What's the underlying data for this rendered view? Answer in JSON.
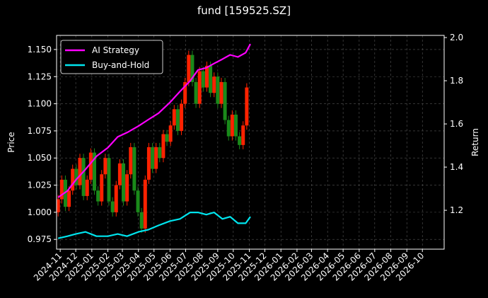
{
  "chart_data": {
    "title": "fund [159525.SZ]",
    "type": "line",
    "grid": true,
    "legend_position": "top-left",
    "y_left": {
      "label": "Price",
      "lim": [
        0.966,
        1.163
      ],
      "ticks": [
        0.975,
        1.0,
        1.025,
        1.05,
        1.075,
        1.1,
        1.125,
        1.15
      ],
      "tick_labels": [
        "0.975",
        "1.000",
        "1.025",
        "1.050",
        "1.075",
        "1.100",
        "1.125",
        "1.150"
      ]
    },
    "y_right": {
      "label": "Return",
      "lim": [
        1.02,
        2.01
      ],
      "ticks": [
        1.2,
        1.4,
        1.6,
        1.8,
        2.0
      ],
      "tick_labels": [
        "1.2",
        "1.4",
        "1.6",
        "1.8",
        "2.0"
      ]
    },
    "x_axis": {
      "lim": [
        "2024-10-25",
        "2026-11-12"
      ],
      "tick_dates": [
        "2024-11-01",
        "2024-12-01",
        "2025-01-01",
        "2025-02-01",
        "2025-03-01",
        "2025-04-01",
        "2025-05-01",
        "2025-06-01",
        "2025-07-01",
        "2025-08-01",
        "2025-09-01",
        "2025-10-01",
        "2025-11-01",
        "2025-12-01",
        "2026-01-01",
        "2026-02-01",
        "2026-03-01",
        "2026-04-01",
        "2026-05-01",
        "2026-06-01",
        "2026-07-01",
        "2026-08-01",
        "2026-09-01",
        "2026-10-01"
      ],
      "tick_labels": [
        "2024-11",
        "2024-12",
        "2025-01",
        "2025-02",
        "2025-03",
        "2025-04",
        "2025-05",
        "2025-06",
        "2025-07",
        "2025-08",
        "2025-09",
        "2025-10",
        "2025-11",
        "2025-12",
        "2026-01",
        "2026-02",
        "2026-03",
        "2026-04",
        "2026-05",
        "2026-06",
        "2026-07",
        "2026-08",
        "2026-09",
        "2026-10"
      ]
    },
    "candles": {
      "up_color": "#ff2200",
      "down_color": "#1a8a1a",
      "points": [
        [
          "2024-10-28",
          1.0,
          1.012
        ],
        [
          "2024-11-04",
          1.012,
          1.03
        ],
        [
          "2024-11-11",
          1.03,
          1.005
        ],
        [
          "2024-11-18",
          1.005,
          1.02
        ],
        [
          "2024-11-25",
          1.02,
          1.04
        ],
        [
          "2024-12-02",
          1.04,
          1.025
        ],
        [
          "2024-12-09",
          1.025,
          1.05
        ],
        [
          "2024-12-16",
          1.05,
          1.015
        ],
        [
          "2024-12-23",
          1.015,
          1.03
        ],
        [
          "2024-12-30",
          1.03,
          1.055
        ],
        [
          "2025-01-06",
          1.055,
          1.02
        ],
        [
          "2025-01-13",
          1.02,
          1.01
        ],
        [
          "2025-01-20",
          1.01,
          1.035
        ],
        [
          "2025-01-27",
          1.035,
          1.05
        ],
        [
          "2025-02-03",
          1.05,
          1.01
        ],
        [
          "2025-02-10",
          1.01,
          1.0
        ],
        [
          "2025-02-17",
          1.0,
          1.025
        ],
        [
          "2025-02-24",
          1.025,
          1.045
        ],
        [
          "2025-03-03",
          1.045,
          1.01
        ],
        [
          "2025-03-10",
          1.01,
          1.035
        ],
        [
          "2025-03-17",
          1.035,
          1.06
        ],
        [
          "2025-03-24",
          1.06,
          1.02
        ],
        [
          "2025-03-31",
          1.02,
          1.0
        ],
        [
          "2025-04-07",
          1.0,
          0.985
        ],
        [
          "2025-04-14",
          0.985,
          1.03
        ],
        [
          "2025-04-21",
          1.03,
          1.06
        ],
        [
          "2025-04-28",
          1.06,
          1.04
        ],
        [
          "2025-05-05",
          1.04,
          1.06
        ],
        [
          "2025-05-12",
          1.06,
          1.05
        ],
        [
          "2025-05-19",
          1.05,
          1.072
        ],
        [
          "2025-05-26",
          1.072,
          1.065
        ],
        [
          "2025-06-02",
          1.065,
          1.08
        ],
        [
          "2025-06-09",
          1.08,
          1.095
        ],
        [
          "2025-06-16",
          1.095,
          1.075
        ],
        [
          "2025-06-23",
          1.075,
          1.1
        ],
        [
          "2025-06-30",
          1.1,
          1.12
        ],
        [
          "2025-07-07",
          1.12,
          1.145
        ],
        [
          "2025-07-14",
          1.145,
          1.12
        ],
        [
          "2025-07-21",
          1.12,
          1.1
        ],
        [
          "2025-07-28",
          1.1,
          1.13
        ],
        [
          "2025-08-04",
          1.13,
          1.115
        ],
        [
          "2025-08-11",
          1.115,
          1.135
        ],
        [
          "2025-08-18",
          1.135,
          1.11
        ],
        [
          "2025-08-25",
          1.11,
          1.125
        ],
        [
          "2025-09-01",
          1.125,
          1.1
        ],
        [
          "2025-09-08",
          1.1,
          1.12
        ],
        [
          "2025-09-15",
          1.12,
          1.085
        ],
        [
          "2025-09-22",
          1.085,
          1.07
        ],
        [
          "2025-09-29",
          1.07,
          1.09
        ],
        [
          "2025-10-06",
          1.09,
          1.07
        ],
        [
          "2025-10-13",
          1.07,
          1.062
        ],
        [
          "2025-10-20",
          1.062,
          1.08
        ],
        [
          "2025-10-27",
          1.08,
          1.115
        ]
      ]
    },
    "series": [
      {
        "name": "AI Strategy",
        "axis": "right",
        "color": "#ff00ff",
        "x": [
          "2024-10-28",
          "2024-11-15",
          "2024-12-01",
          "2024-12-20",
          "2025-01-10",
          "2025-02-01",
          "2025-02-20",
          "2025-03-10",
          "2025-04-01",
          "2025-04-20",
          "2025-05-10",
          "2025-06-01",
          "2025-06-20",
          "2025-07-10",
          "2025-07-25",
          "2025-08-10",
          "2025-08-25",
          "2025-09-10",
          "2025-09-25",
          "2025-10-10",
          "2025-10-25",
          "2025-11-03"
        ],
        "y": [
          1.26,
          1.29,
          1.34,
          1.39,
          1.45,
          1.49,
          1.54,
          1.56,
          1.59,
          1.62,
          1.65,
          1.7,
          1.75,
          1.8,
          1.85,
          1.86,
          1.88,
          1.9,
          1.92,
          1.91,
          1.93,
          1.97
        ]
      },
      {
        "name": "Buy-and-Hold",
        "axis": "right",
        "color": "#00e5ee",
        "x": [
          "2024-10-28",
          "2024-11-15",
          "2024-12-01",
          "2024-12-20",
          "2025-01-10",
          "2025-02-01",
          "2025-02-20",
          "2025-03-10",
          "2025-04-01",
          "2025-04-20",
          "2025-05-10",
          "2025-06-01",
          "2025-06-20",
          "2025-07-10",
          "2025-07-25",
          "2025-08-10",
          "2025-08-25",
          "2025-09-10",
          "2025-09-25",
          "2025-10-10",
          "2025-10-25",
          "2025-11-03"
        ],
        "y": [
          1.07,
          1.08,
          1.09,
          1.1,
          1.08,
          1.08,
          1.09,
          1.08,
          1.1,
          1.11,
          1.13,
          1.15,
          1.16,
          1.19,
          1.19,
          1.18,
          1.19,
          1.16,
          1.17,
          1.14,
          1.14,
          1.17
        ]
      }
    ]
  }
}
